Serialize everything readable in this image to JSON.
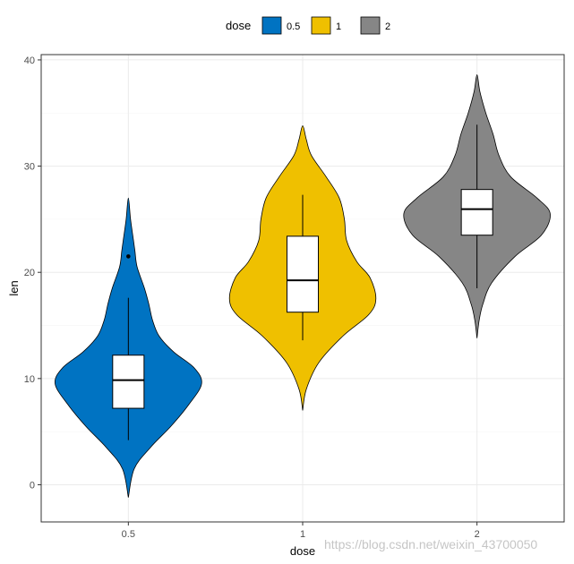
{
  "chart_data": {
    "type": "violin",
    "xlabel": "dose",
    "ylabel": "len",
    "ylim": [
      -3.5,
      40.5
    ],
    "yticks": [
      0,
      10,
      20,
      30,
      40
    ],
    "grid": true,
    "legend": {
      "title": "dose",
      "position": "top",
      "entries": [
        "0.5",
        "1",
        "2"
      ]
    },
    "categories": [
      "0.5",
      "1",
      "2"
    ],
    "series": [
      {
        "name": "0.5",
        "color": "#0073C2",
        "density": [
          [
            -1.2,
            0.0
          ],
          [
            1.5,
            0.08
          ],
          [
            3.5,
            0.3
          ],
          [
            5.5,
            0.58
          ],
          [
            7.5,
            0.82
          ],
          [
            9.5,
            1.0
          ],
          [
            11.0,
            0.9
          ],
          [
            12.5,
            0.62
          ],
          [
            14.0,
            0.42
          ],
          [
            15.5,
            0.33
          ],
          [
            17.0,
            0.28
          ],
          [
            18.5,
            0.22
          ],
          [
            20.5,
            0.12
          ],
          [
            22.0,
            0.09
          ],
          [
            23.0,
            0.07
          ],
          [
            25.0,
            0.03
          ],
          [
            27.0,
            0.0
          ]
        ],
        "box": {
          "q1": 7.2,
          "median": 9.85,
          "q3": 12.2,
          "whisker_low": 4.2,
          "whisker_high": 17.6
        },
        "outliers": [
          21.5
        ]
      },
      {
        "name": "1",
        "color": "#EFC000",
        "density": [
          [
            7.0,
            0.0
          ],
          [
            9.0,
            0.05
          ],
          [
            11.5,
            0.22
          ],
          [
            14.0,
            0.55
          ],
          [
            16.0,
            0.9
          ],
          [
            17.5,
            1.0
          ],
          [
            19.5,
            0.92
          ],
          [
            21.0,
            0.74
          ],
          [
            23.0,
            0.6
          ],
          [
            25.0,
            0.57
          ],
          [
            27.0,
            0.5
          ],
          [
            29.0,
            0.32
          ],
          [
            31.0,
            0.12
          ],
          [
            32.5,
            0.05
          ],
          [
            33.8,
            0.0
          ]
        ],
        "box": {
          "q1": 16.25,
          "median": 19.25,
          "q3": 23.4,
          "whisker_low": 13.6,
          "whisker_high": 27.3
        },
        "outliers": []
      },
      {
        "name": "2",
        "color": "#868686",
        "density": [
          [
            13.8,
            0.0
          ],
          [
            15.5,
            0.03
          ],
          [
            17.0,
            0.08
          ],
          [
            19.0,
            0.2
          ],
          [
            21.5,
            0.52
          ],
          [
            23.5,
            0.88
          ],
          [
            25.5,
            1.0
          ],
          [
            27.0,
            0.82
          ],
          [
            29.0,
            0.46
          ],
          [
            31.0,
            0.3
          ],
          [
            33.0,
            0.22
          ],
          [
            35.0,
            0.12
          ],
          [
            37.0,
            0.04
          ],
          [
            38.6,
            0.0
          ]
        ],
        "box": {
          "q1": 23.5,
          "median": 25.95,
          "q3": 27.8,
          "whisker_low": 18.5,
          "whisker_high": 33.9
        },
        "outliers": []
      }
    ]
  },
  "watermark": "https://blog.csdn.net/weixin_43700050"
}
